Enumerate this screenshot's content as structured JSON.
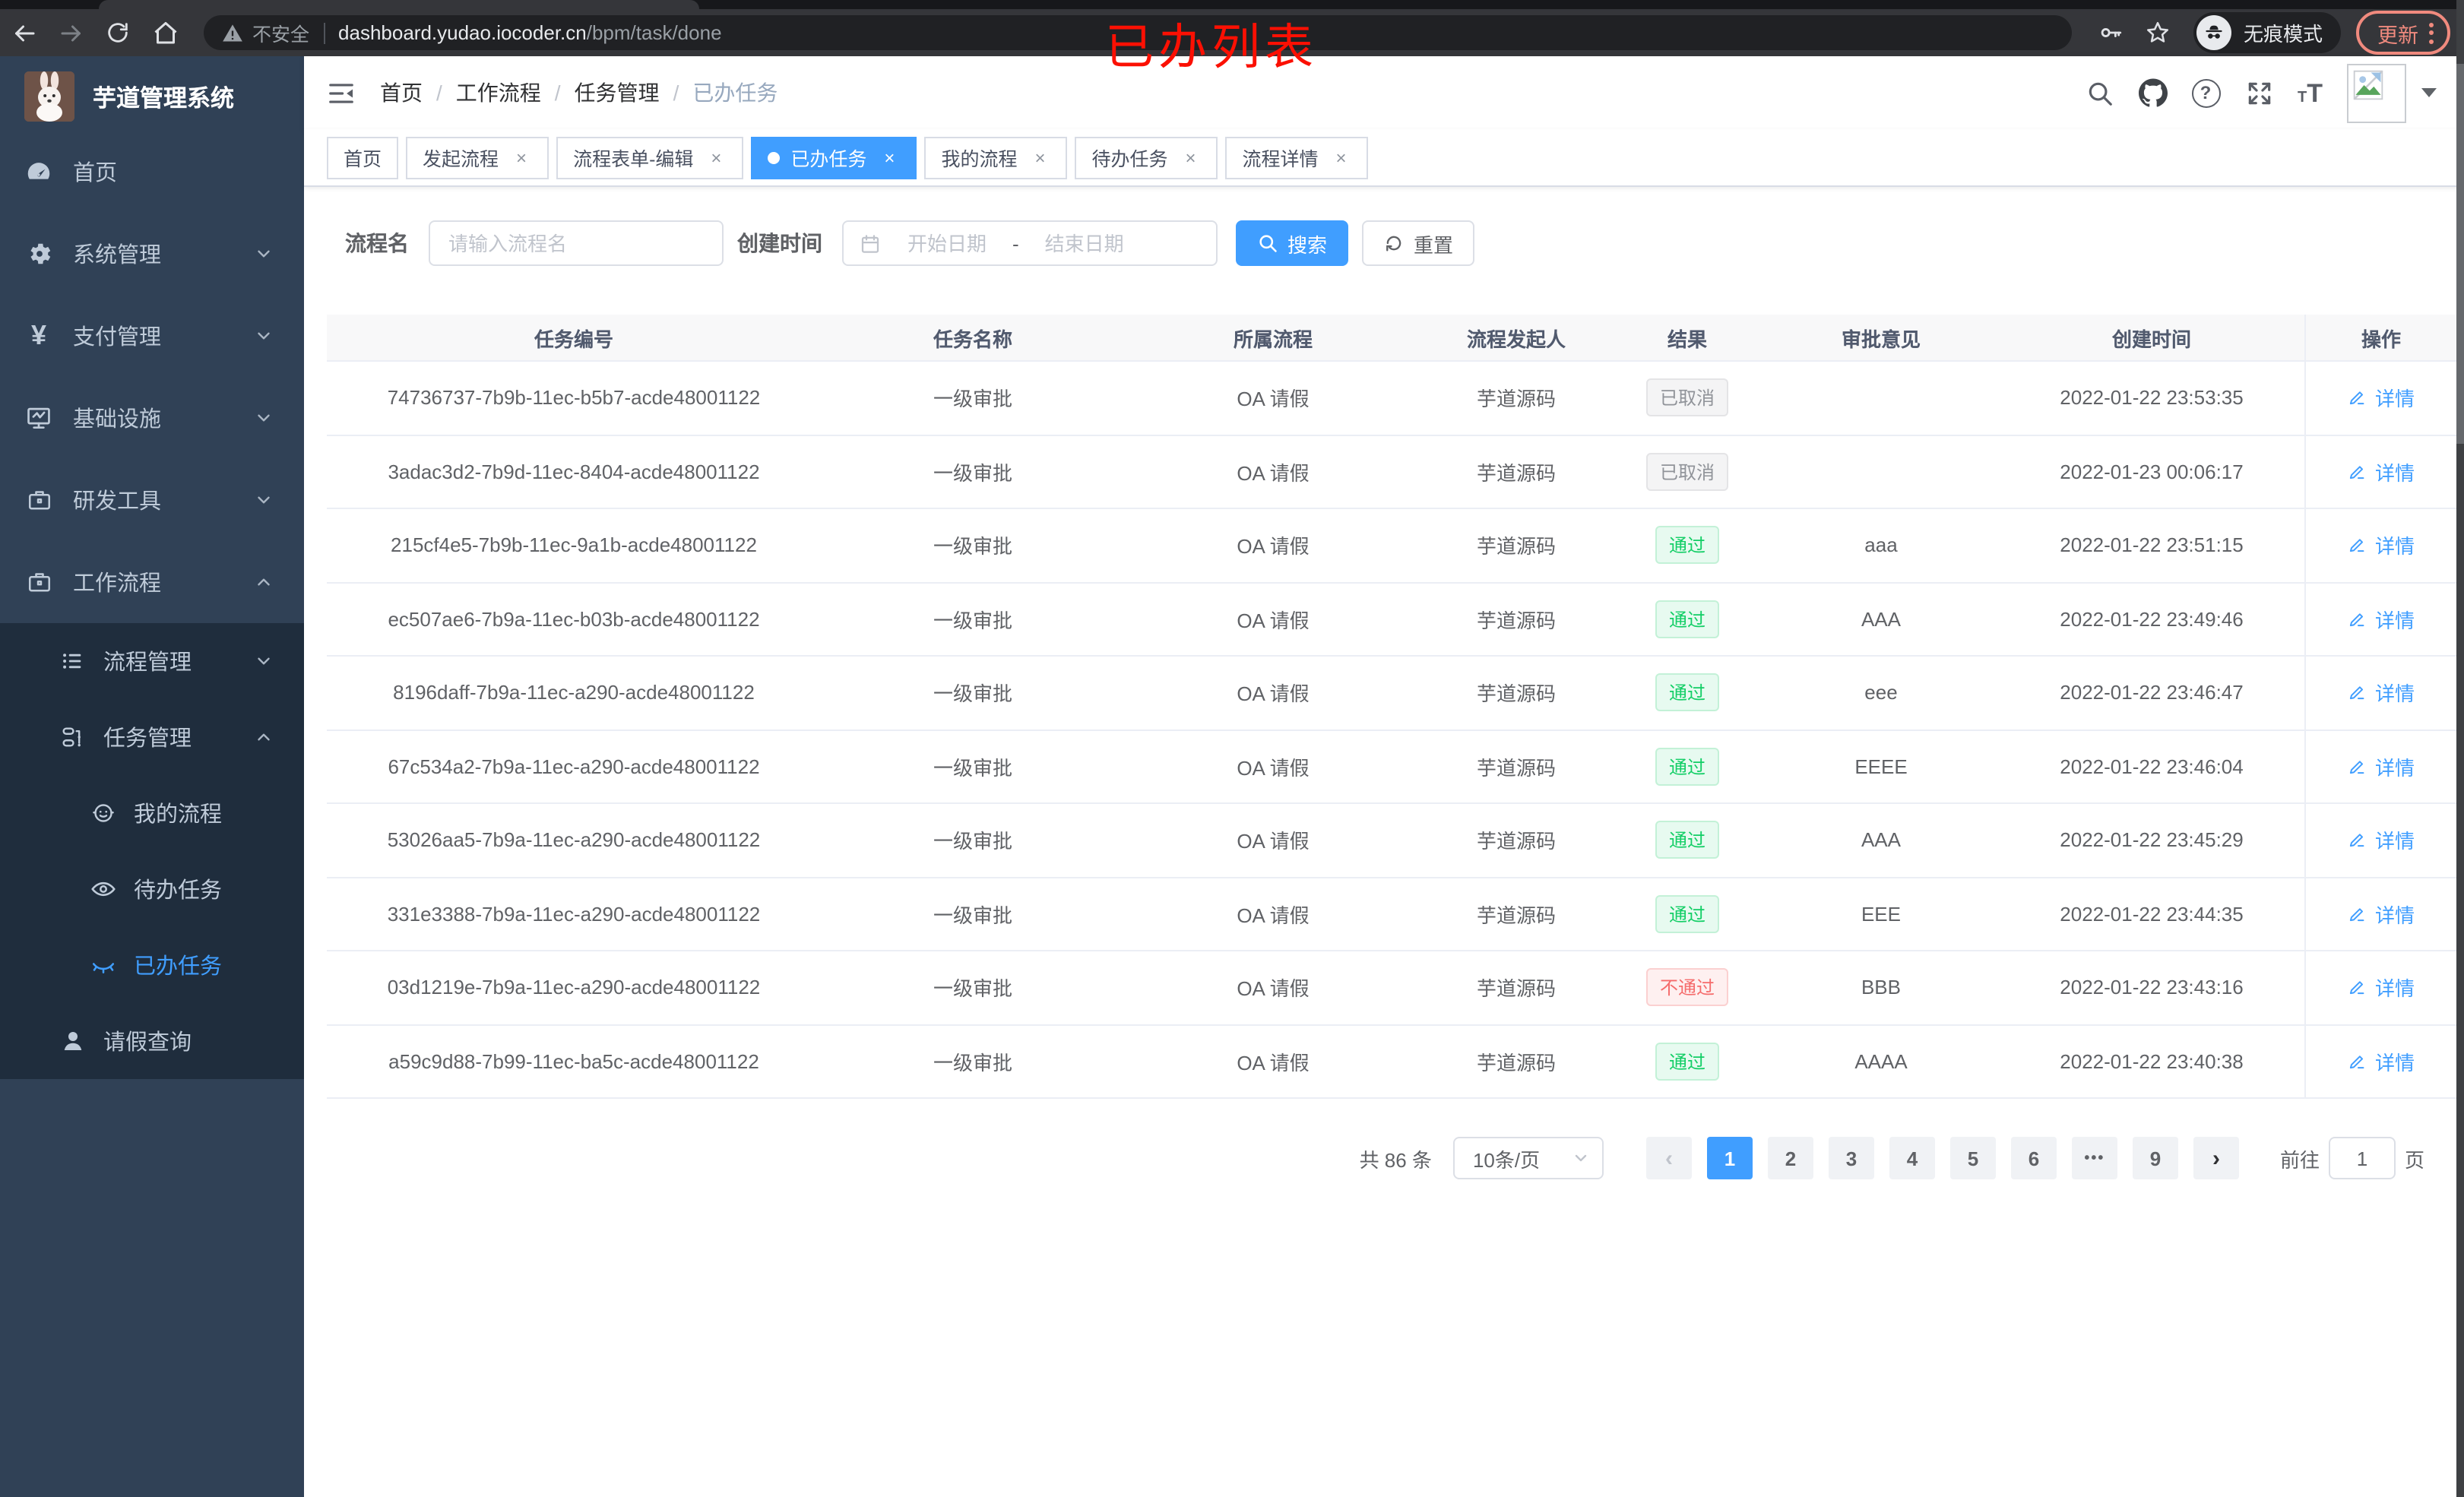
{
  "browser": {
    "security_label": "不安全",
    "url_host": "dashboard.yudao.iocoder.cn",
    "url_path": "/bpm/task/done",
    "incognito_label": "无痕模式",
    "update_label": "更新"
  },
  "annotation": {
    "text": "已办列表"
  },
  "sidebar": {
    "title": "芋道管理系统",
    "items": [
      {
        "label": "首页",
        "icon": "dashboard-icon",
        "level": 1
      },
      {
        "label": "系统管理",
        "icon": "gear-icon",
        "level": 1,
        "chevron": "down"
      },
      {
        "label": "支付管理",
        "icon": "yen-icon",
        "level": 1,
        "chevron": "down"
      },
      {
        "label": "基础设施",
        "icon": "monitor-icon",
        "level": 1,
        "chevron": "down"
      },
      {
        "label": "研发工具",
        "icon": "toolbox-icon",
        "level": 1,
        "chevron": "down"
      },
      {
        "label": "工作流程",
        "icon": "briefcase-icon",
        "level": 1,
        "chevron": "up"
      },
      {
        "label": "流程管理",
        "icon": "list-icon",
        "level": 2,
        "chevron": "down"
      },
      {
        "label": "任务管理",
        "icon": "flow-icon",
        "level": 2,
        "chevron": "up"
      },
      {
        "label": "我的流程",
        "icon": "robot-icon",
        "level": 3
      },
      {
        "label": "待办任务",
        "icon": "eye-icon",
        "level": 3
      },
      {
        "label": "已办任务",
        "icon": "eye-closed-icon",
        "level": 3,
        "active": true
      },
      {
        "label": "请假查询",
        "icon": "user-icon",
        "level": 2
      }
    ]
  },
  "header": {
    "breadcrumb": [
      "首页",
      "工作流程",
      "任务管理",
      "已办任务"
    ],
    "breadcrumb_separator": "/"
  },
  "tabs": [
    {
      "label": "首页",
      "closable": false,
      "active": false
    },
    {
      "label": "发起流程",
      "closable": true,
      "active": false
    },
    {
      "label": "流程表单-编辑",
      "closable": true,
      "active": false
    },
    {
      "label": "已办任务",
      "closable": true,
      "active": true
    },
    {
      "label": "我的流程",
      "closable": true,
      "active": false
    },
    {
      "label": "待办任务",
      "closable": true,
      "active": false
    },
    {
      "label": "流程详情",
      "closable": true,
      "active": false
    }
  ],
  "filters": {
    "name_label": "流程名",
    "name_placeholder": "请输入流程名",
    "time_label": "创建时间",
    "start_placeholder": "开始日期",
    "range_separator": "-",
    "end_placeholder": "结束日期",
    "search_label": "搜索",
    "reset_label": "重置"
  },
  "table": {
    "columns": [
      "任务编号",
      "任务名称",
      "所属流程",
      "流程发起人",
      "结果",
      "审批意见",
      "创建时间",
      "操作"
    ],
    "action_label": "详情",
    "rows": [
      {
        "id": "74736737-7b9b-11ec-b5b7-acde48001122",
        "name": "一级审批",
        "process": "OA 请假",
        "starter": "芋道源码",
        "result": "已取消",
        "result_type": "info",
        "comment": "",
        "time": "2022-01-22 23:53:35"
      },
      {
        "id": "3adac3d2-7b9d-11ec-8404-acde48001122",
        "name": "一级审批",
        "process": "OA 请假",
        "starter": "芋道源码",
        "result": "已取消",
        "result_type": "info",
        "comment": "",
        "time": "2022-01-23 00:06:17"
      },
      {
        "id": "215cf4e5-7b9b-11ec-9a1b-acde48001122",
        "name": "一级审批",
        "process": "OA 请假",
        "starter": "芋道源码",
        "result": "通过",
        "result_type": "success",
        "comment": "aaa",
        "time": "2022-01-22 23:51:15"
      },
      {
        "id": "ec507ae6-7b9a-11ec-b03b-acde48001122",
        "name": "一级审批",
        "process": "OA 请假",
        "starter": "芋道源码",
        "result": "通过",
        "result_type": "success",
        "comment": "AAA",
        "time": "2022-01-22 23:49:46"
      },
      {
        "id": "8196daff-7b9a-11ec-a290-acde48001122",
        "name": "一级审批",
        "process": "OA 请假",
        "starter": "芋道源码",
        "result": "通过",
        "result_type": "success",
        "comment": "eee",
        "time": "2022-01-22 23:46:47"
      },
      {
        "id": "67c534a2-7b9a-11ec-a290-acde48001122",
        "name": "一级审批",
        "process": "OA 请假",
        "starter": "芋道源码",
        "result": "通过",
        "result_type": "success",
        "comment": "EEEE",
        "time": "2022-01-22 23:46:04"
      },
      {
        "id": "53026aa5-7b9a-11ec-a290-acde48001122",
        "name": "一级审批",
        "process": "OA 请假",
        "starter": "芋道源码",
        "result": "通过",
        "result_type": "success",
        "comment": "AAA",
        "time": "2022-01-22 23:45:29"
      },
      {
        "id": "331e3388-7b9a-11ec-a290-acde48001122",
        "name": "一级审批",
        "process": "OA 请假",
        "starter": "芋道源码",
        "result": "通过",
        "result_type": "success",
        "comment": "EEE",
        "time": "2022-01-22 23:44:35"
      },
      {
        "id": "03d1219e-7b9a-11ec-a290-acde48001122",
        "name": "一级审批",
        "process": "OA 请假",
        "starter": "芋道源码",
        "result": "不通过",
        "result_type": "danger",
        "comment": "BBB",
        "time": "2022-01-22 23:43:16"
      },
      {
        "id": "a59c9d88-7b99-11ec-ba5c-acde48001122",
        "name": "一级审批",
        "process": "OA 请假",
        "starter": "芋道源码",
        "result": "通过",
        "result_type": "success",
        "comment": "AAAA",
        "time": "2022-01-22 23:40:38"
      }
    ]
  },
  "pagination": {
    "total_label": "共 86 条",
    "page_size": "10条/页",
    "prev": "‹",
    "next": "›",
    "pages": [
      {
        "label": "1",
        "active": true
      },
      {
        "label": "2"
      },
      {
        "label": "3"
      },
      {
        "label": "4"
      },
      {
        "label": "5"
      },
      {
        "label": "6"
      },
      {
        "label": "•••",
        "ellipsis": true
      },
      {
        "label": "9"
      }
    ],
    "goto_label": "前往",
    "goto_value": "1",
    "goto_suffix": "页"
  },
  "icons": {
    "yen": "¥",
    "question": "?",
    "close": "×"
  },
  "colors": {
    "primary": "#409eff",
    "success": "#13ce66",
    "danger": "#f56c6c",
    "info": "#909399",
    "sidebar_bg": "#304156",
    "submenu_bg": "#1f2d3d",
    "annotation_red": "#fb1003",
    "update_badge": "#f08a7e"
  }
}
